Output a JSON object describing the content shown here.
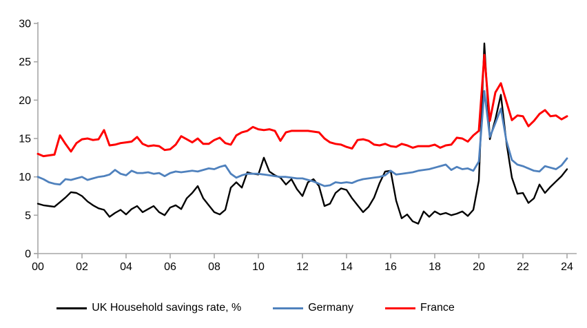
{
  "chart_data": {
    "type": "line",
    "title": "",
    "xlabel": "",
    "ylabel": "",
    "x_start_year": 2000,
    "x_step_years": 0.25,
    "x_tick_labels": [
      "00",
      "02",
      "04",
      "06",
      "08",
      "10",
      "12",
      "14",
      "16",
      "18",
      "20",
      "22",
      "24"
    ],
    "y_tick_labels": [
      "0",
      "5",
      "10",
      "15",
      "20",
      "25",
      "30"
    ],
    "y_ticks": [
      0,
      5,
      10,
      15,
      20,
      25,
      30
    ],
    "ylim": [
      0,
      30
    ],
    "grid": false,
    "legend_position": "bottom",
    "axis_color": "#A6A6A6",
    "background_color": "#FFFFFF",
    "series": [
      {
        "name": "UK Household savings rate, %",
        "color": "#000000",
        "line_width": 2.4,
        "values": [
          6.5,
          6.3,
          6.2,
          6.1,
          6.7,
          7.3,
          8.0,
          7.9,
          7.5,
          6.8,
          6.3,
          5.9,
          5.7,
          4.8,
          5.3,
          5.7,
          5.1,
          5.8,
          6.2,
          5.4,
          5.8,
          6.2,
          5.4,
          5.0,
          6.0,
          6.3,
          5.8,
          7.2,
          7.9,
          8.8,
          7.2,
          6.3,
          5.4,
          5.1,
          5.7,
          8.6,
          9.3,
          8.6,
          10.6,
          10.4,
          10.3,
          12.5,
          10.7,
          10.2,
          9.9,
          9.0,
          9.7,
          8.4,
          7.5,
          9.3,
          9.7,
          8.8,
          6.2,
          6.5,
          7.9,
          8.5,
          8.3,
          7.2,
          6.3,
          5.4,
          6.1,
          7.3,
          9.2,
          10.7,
          10.8,
          6.9,
          4.6,
          5.1,
          4.2,
          3.9,
          5.5,
          4.8,
          5.5,
          5.1,
          5.3,
          5.0,
          5.2,
          5.5,
          4.9,
          5.7,
          9.5,
          27.4,
          14.9,
          17.5,
          20.7,
          14.5,
          9.9,
          7.8,
          7.9,
          6.6,
          7.2,
          9.0,
          7.9,
          8.7,
          9.4,
          10.1,
          11.0
        ]
      },
      {
        "name": "Germany",
        "color": "#4F81BD",
        "line_width": 2.8,
        "values": [
          10.0,
          9.7,
          9.3,
          9.1,
          9.0,
          9.7,
          9.6,
          9.8,
          10.0,
          9.6,
          9.8,
          10.0,
          10.1,
          10.3,
          10.9,
          10.4,
          10.2,
          10.8,
          10.5,
          10.5,
          10.6,
          10.4,
          10.5,
          10.1,
          10.5,
          10.7,
          10.6,
          10.7,
          10.8,
          10.7,
          10.9,
          11.1,
          11.0,
          11.3,
          11.5,
          10.4,
          9.9,
          10.2,
          10.4,
          10.4,
          10.4,
          10.3,
          10.2,
          10.1,
          10.0,
          10.0,
          9.9,
          9.8,
          9.8,
          9.6,
          9.4,
          9.1,
          8.8,
          8.9,
          9.3,
          9.2,
          9.3,
          9.2,
          9.5,
          9.7,
          9.8,
          9.9,
          10.0,
          10.2,
          10.8,
          10.3,
          10.4,
          10.5,
          10.6,
          10.8,
          10.9,
          11.0,
          11.2,
          11.4,
          11.6,
          10.9,
          11.3,
          11.0,
          11.1,
          10.8,
          12.0,
          21.2,
          15.2,
          17.0,
          18.9,
          14.7,
          12.2,
          11.6,
          11.4,
          11.1,
          10.8,
          10.7,
          11.4,
          11.2,
          11.0,
          11.5,
          12.4
        ]
      },
      {
        "name": "France",
        "color": "#FF0000",
        "line_width": 3,
        "values": [
          13.0,
          12.7,
          12.8,
          12.9,
          15.4,
          14.3,
          13.3,
          14.4,
          14.9,
          15.0,
          14.8,
          14.9,
          16.1,
          14.1,
          14.2,
          14.4,
          14.5,
          14.6,
          15.2,
          14.3,
          14.0,
          14.1,
          14.0,
          13.5,
          13.6,
          14.2,
          15.3,
          14.9,
          14.5,
          15.0,
          14.3,
          14.3,
          14.8,
          15.1,
          14.4,
          14.2,
          15.4,
          15.8,
          16.0,
          16.5,
          16.2,
          16.1,
          16.2,
          16.0,
          14.7,
          15.8,
          16.0,
          16.0,
          16.0,
          16.0,
          15.9,
          15.8,
          15.0,
          14.5,
          14.3,
          14.2,
          13.9,
          13.7,
          14.8,
          14.9,
          14.7,
          14.2,
          14.1,
          14.3,
          14.0,
          13.9,
          14.3,
          14.1,
          13.8,
          14.0,
          14.0,
          14.0,
          14.2,
          13.8,
          14.1,
          14.2,
          15.1,
          15.0,
          14.6,
          15.4,
          16.0,
          25.9,
          17.3,
          21.0,
          22.2,
          19.8,
          17.4,
          18.0,
          17.9,
          16.6,
          17.3,
          18.2,
          18.7,
          17.9,
          18.0,
          17.5,
          17.9
        ]
      }
    ]
  }
}
